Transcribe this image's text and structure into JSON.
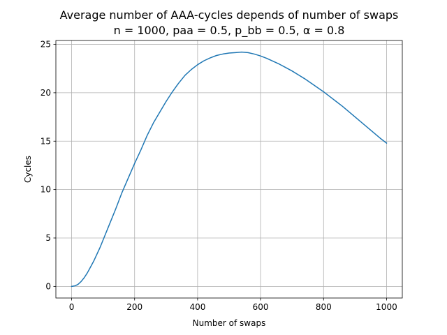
{
  "chart_data": {
    "type": "line",
    "title": "Average number of AAA-cycles depends of number of swaps",
    "subtitle": "n = 1000, paa = 0.5, p_bb = 0.5, α = 0.8",
    "xlabel": "Number of swaps",
    "ylabel": "Cycles",
    "xlim": [
      -50,
      1050
    ],
    "ylim": [
      -1.2,
      25.4
    ],
    "xticks": [
      0,
      200,
      400,
      600,
      800,
      1000
    ],
    "yticks": [
      0,
      5,
      10,
      15,
      20,
      25
    ],
    "grid": true,
    "line_color": "#1f77b4",
    "series": [
      {
        "x": [
          0,
          10,
          20,
          30,
          40,
          50,
          60,
          70,
          80,
          90,
          100,
          120,
          140,
          160,
          180,
          200,
          220,
          240,
          260,
          280,
          300,
          320,
          340,
          360,
          380,
          400,
          420,
          440,
          460,
          480,
          500,
          520,
          540,
          560,
          580,
          600,
          620,
          640,
          660,
          680,
          700,
          720,
          740,
          760,
          780,
          800,
          820,
          840,
          860,
          880,
          900,
          920,
          940,
          960,
          980,
          1000
        ],
        "values": [
          0,
          0.05,
          0.2,
          0.5,
          0.9,
          1.4,
          2.0,
          2.6,
          3.3,
          4.0,
          4.8,
          6.4,
          8.0,
          9.7,
          11.2,
          12.7,
          14.1,
          15.6,
          16.9,
          18.0,
          19.1,
          20.1,
          21.0,
          21.8,
          22.4,
          22.9,
          23.3,
          23.6,
          23.85,
          24.0,
          24.1,
          24.15,
          24.2,
          24.15,
          24.0,
          23.8,
          23.55,
          23.25,
          22.95,
          22.6,
          22.25,
          21.85,
          21.45,
          21.0,
          20.55,
          20.1,
          19.6,
          19.1,
          18.6,
          18.05,
          17.5,
          16.95,
          16.4,
          15.85,
          15.3,
          14.8
        ]
      }
    ]
  }
}
